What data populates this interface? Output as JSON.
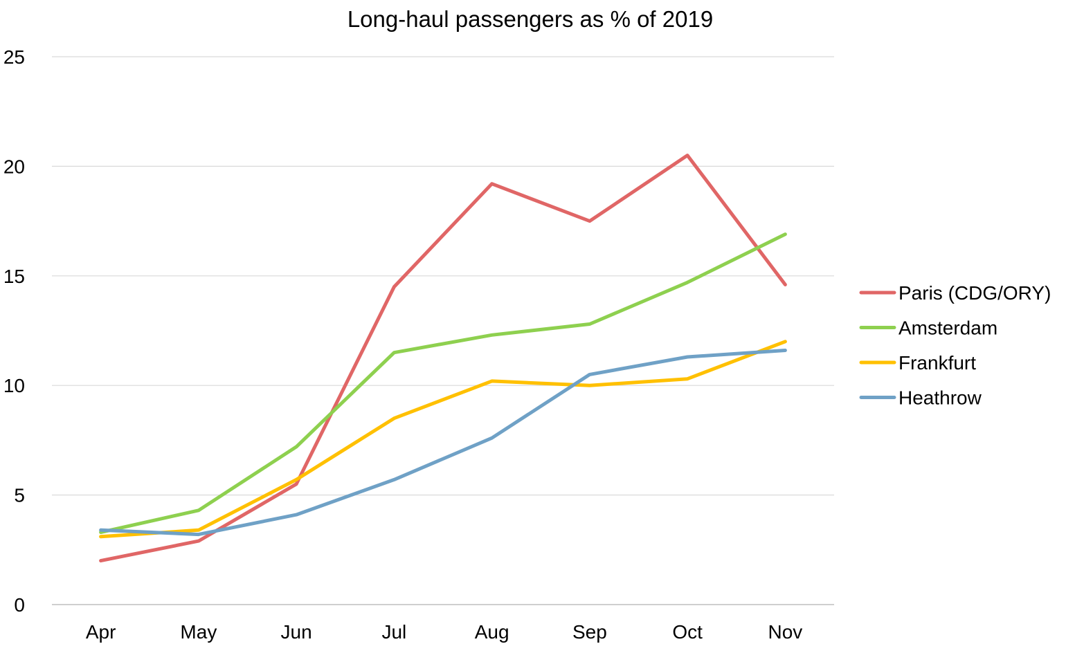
{
  "chart_data": {
    "type": "line",
    "title": "Long-haul passengers as % of 2019",
    "xlabel": "",
    "ylabel": "",
    "categories": [
      "Apr",
      "May",
      "Jun",
      "Jul",
      "Aug",
      "Sep",
      "Oct",
      "Nov"
    ],
    "ylim": [
      0,
      25
    ],
    "yticks": [
      "0",
      "5",
      "10",
      "15",
      "20",
      "25"
    ],
    "grid": true,
    "legend_position": "right",
    "series": [
      {
        "name": "Paris (CDG/ORY)",
        "color": "#E06666",
        "values": [
          2.0,
          2.9,
          5.5,
          14.5,
          19.2,
          17.5,
          20.5,
          14.6
        ]
      },
      {
        "name": "Amsterdam",
        "color": "#8ED04F",
        "values": [
          3.3,
          4.3,
          7.2,
          11.5,
          12.3,
          12.8,
          14.7,
          16.9
        ]
      },
      {
        "name": "Frankfurt",
        "color": "#FFC000",
        "values": [
          3.1,
          3.4,
          5.7,
          8.5,
          10.2,
          10.0,
          10.3,
          12.0
        ]
      },
      {
        "name": "Heathrow",
        "color": "#6FA1C6",
        "values": [
          3.4,
          3.2,
          4.1,
          5.7,
          7.6,
          10.5,
          11.3,
          11.6
        ]
      }
    ]
  }
}
